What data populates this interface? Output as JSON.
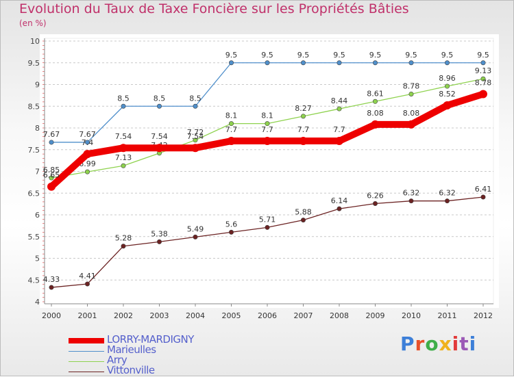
{
  "chart_data": {
    "type": "line",
    "title": "Evolution du Taux de Taxe Foncière sur les Propriétés Bâties",
    "unit_label": "(en %)",
    "x": [
      "2000",
      "2001",
      "2002",
      "2003",
      "2004",
      "2005",
      "2006",
      "2007",
      "2008",
      "2009",
      "2010",
      "2011",
      "2012"
    ],
    "y_ticks": [
      "4",
      "4.5",
      "5",
      "5.5",
      "6",
      "6.5",
      "7",
      "7.5",
      "8",
      "8.5",
      "9",
      "9.5",
      "10"
    ],
    "ylim": [
      4,
      10
    ],
    "grid": "horizontal dashed",
    "series": [
      {
        "name": "Marieulles",
        "color": "#4f8fcb",
        "values": [
          7.67,
          7.67,
          8.5,
          8.5,
          8.5,
          9.5,
          9.5,
          9.5,
          9.5,
          9.5,
          9.5,
          9.5,
          9.5
        ],
        "labels": [
          "7.67",
          "7.67",
          "8.5",
          "8.5",
          "8.5",
          "9.5",
          "9.5",
          "9.5",
          "9.5",
          "9.5",
          "9.5",
          "9.5",
          "9.5"
        ]
      },
      {
        "name": "Arry",
        "color": "#8ed24e",
        "values": [
          6.85,
          6.99,
          7.13,
          7.42,
          7.72,
          8.1,
          8.1,
          8.27,
          8.44,
          8.61,
          8.78,
          8.96,
          9.13
        ],
        "labels": [
          "6.85",
          "6.99",
          "7.13",
          "7.42",
          "7.72",
          "8.1",
          "8.1",
          "8.27",
          "8.44",
          "8.61",
          "8.78",
          "8.96",
          "9.13"
        ]
      },
      {
        "name": "Vittonville",
        "color": "#6b2222",
        "values": [
          4.33,
          4.41,
          5.28,
          5.38,
          5.49,
          5.6,
          5.71,
          5.88,
          6.14,
          6.26,
          6.32,
          6.32,
          6.41
        ],
        "labels": [
          "4.33",
          "4.41",
          "5.28",
          "5.38",
          "5.49",
          "5.6",
          "5.71",
          "5.88",
          "6.14",
          "6.26",
          "6.32",
          "6.32",
          "6.41"
        ]
      },
      {
        "name": "LORRY-MARDIGNY",
        "color": "#ee0000",
        "values": [
          6.65,
          7.4,
          7.54,
          7.54,
          7.54,
          7.7,
          7.7,
          7.7,
          7.7,
          8.08,
          8.08,
          8.52,
          8.78
        ],
        "labels": [
          "6.65",
          "7.4",
          "7.54",
          "7.54",
          "7.54",
          "7.7",
          "7.7",
          "7.7",
          "7.7",
          "8.08",
          "8.08",
          "8.52",
          "8.78"
        ]
      }
    ]
  },
  "legend": [
    {
      "label": "LORRY-MARDIGNY",
      "color": "#ee0000"
    },
    {
      "label": "Marieulles",
      "color": "#4f8fcb"
    },
    {
      "label": "Arry",
      "color": "#8ed24e"
    },
    {
      "label": "Vittonville",
      "color": "#6b2222"
    }
  ],
  "brand": {
    "text": "Proxiti",
    "colors": [
      "#3d7fd8",
      "#e8502a",
      "#3fae49",
      "#f0b21d",
      "#e23a3a",
      "#9b59b6",
      "#3d7fd8"
    ]
  }
}
